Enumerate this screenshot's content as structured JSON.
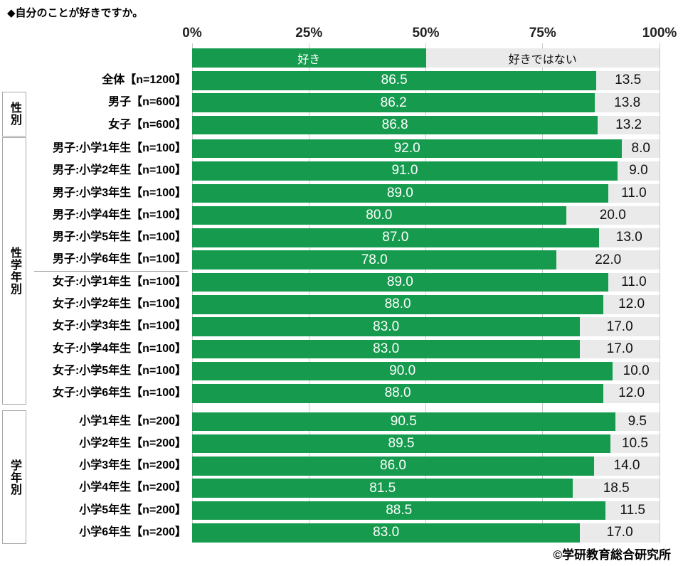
{
  "title": "◆自分のことが好きですか。",
  "footer": "©学研教育総合研究所",
  "colors": {
    "like": "#169b4e",
    "not_like": "#eaeaea",
    "like_text": "#ffffff",
    "not_like_text": "#111111",
    "gridline": "#c9c9c9"
  },
  "chart_data": {
    "type": "bar",
    "stacked": true,
    "orientation": "horizontal",
    "title": "◆自分のことが好きですか。",
    "x_axis": {
      "ticks": [
        "0%",
        "25%",
        "50%",
        "75%",
        "100%"
      ],
      "tick_percents": [
        0,
        25,
        50,
        75,
        100
      ],
      "range": [
        0,
        100
      ]
    },
    "series": [
      {
        "name": "好き"
      },
      {
        "name": "好きではない"
      }
    ],
    "groups": [
      {
        "label": "",
        "rows": [
          {
            "label": "全体【n=1200】",
            "like": 86.5,
            "not_like": 13.5
          }
        ]
      },
      {
        "label": "性別",
        "rows": [
          {
            "label": "男子【n=600】",
            "like": 86.2,
            "not_like": 13.8
          },
          {
            "label": "女子【n=600】",
            "like": 86.8,
            "not_like": 13.2
          }
        ]
      },
      {
        "label": "性学年別",
        "divider_after_row_index": 5,
        "rows": [
          {
            "label": "男子:小学1年生【n=100】",
            "like": 92.0,
            "not_like": 8.0
          },
          {
            "label": "男子:小学2年生【n=100】",
            "like": 91.0,
            "not_like": 9.0
          },
          {
            "label": "男子:小学3年生【n=100】",
            "like": 89.0,
            "not_like": 11.0
          },
          {
            "label": "男子:小学4年生【n=100】",
            "like": 80.0,
            "not_like": 20.0
          },
          {
            "label": "男子:小学5年生【n=100】",
            "like": 87.0,
            "not_like": 13.0
          },
          {
            "label": "男子:小学6年生【n=100】",
            "like": 78.0,
            "not_like": 22.0
          },
          {
            "label": "女子:小学1年生【n=100】",
            "like": 89.0,
            "not_like": 11.0
          },
          {
            "label": "女子:小学2年生【n=100】",
            "like": 88.0,
            "not_like": 12.0
          },
          {
            "label": "女子:小学3年生【n=100】",
            "like": 83.0,
            "not_like": 17.0
          },
          {
            "label": "女子:小学4年生【n=100】",
            "like": 83.0,
            "not_like": 17.0
          },
          {
            "label": "女子:小学5年生【n=100】",
            "like": 90.0,
            "not_like": 10.0
          },
          {
            "label": "女子:小学6年生【n=100】",
            "like": 88.0,
            "not_like": 12.0
          }
        ]
      },
      {
        "label": "学年別",
        "rows": [
          {
            "label": "小学1年生【n=200】",
            "like": 90.5,
            "not_like": 9.5
          },
          {
            "label": "小学2年生【n=200】",
            "like": 89.5,
            "not_like": 10.5
          },
          {
            "label": "小学3年生【n=200】",
            "like": 86.0,
            "not_like": 14.0
          },
          {
            "label": "小学4年生【n=200】",
            "like": 81.5,
            "not_like": 18.5
          },
          {
            "label": "小学5年生【n=200】",
            "like": 88.5,
            "not_like": 11.5
          },
          {
            "label": "小学6年生【n=200】",
            "like": 83.0,
            "not_like": 17.0
          }
        ]
      }
    ]
  }
}
